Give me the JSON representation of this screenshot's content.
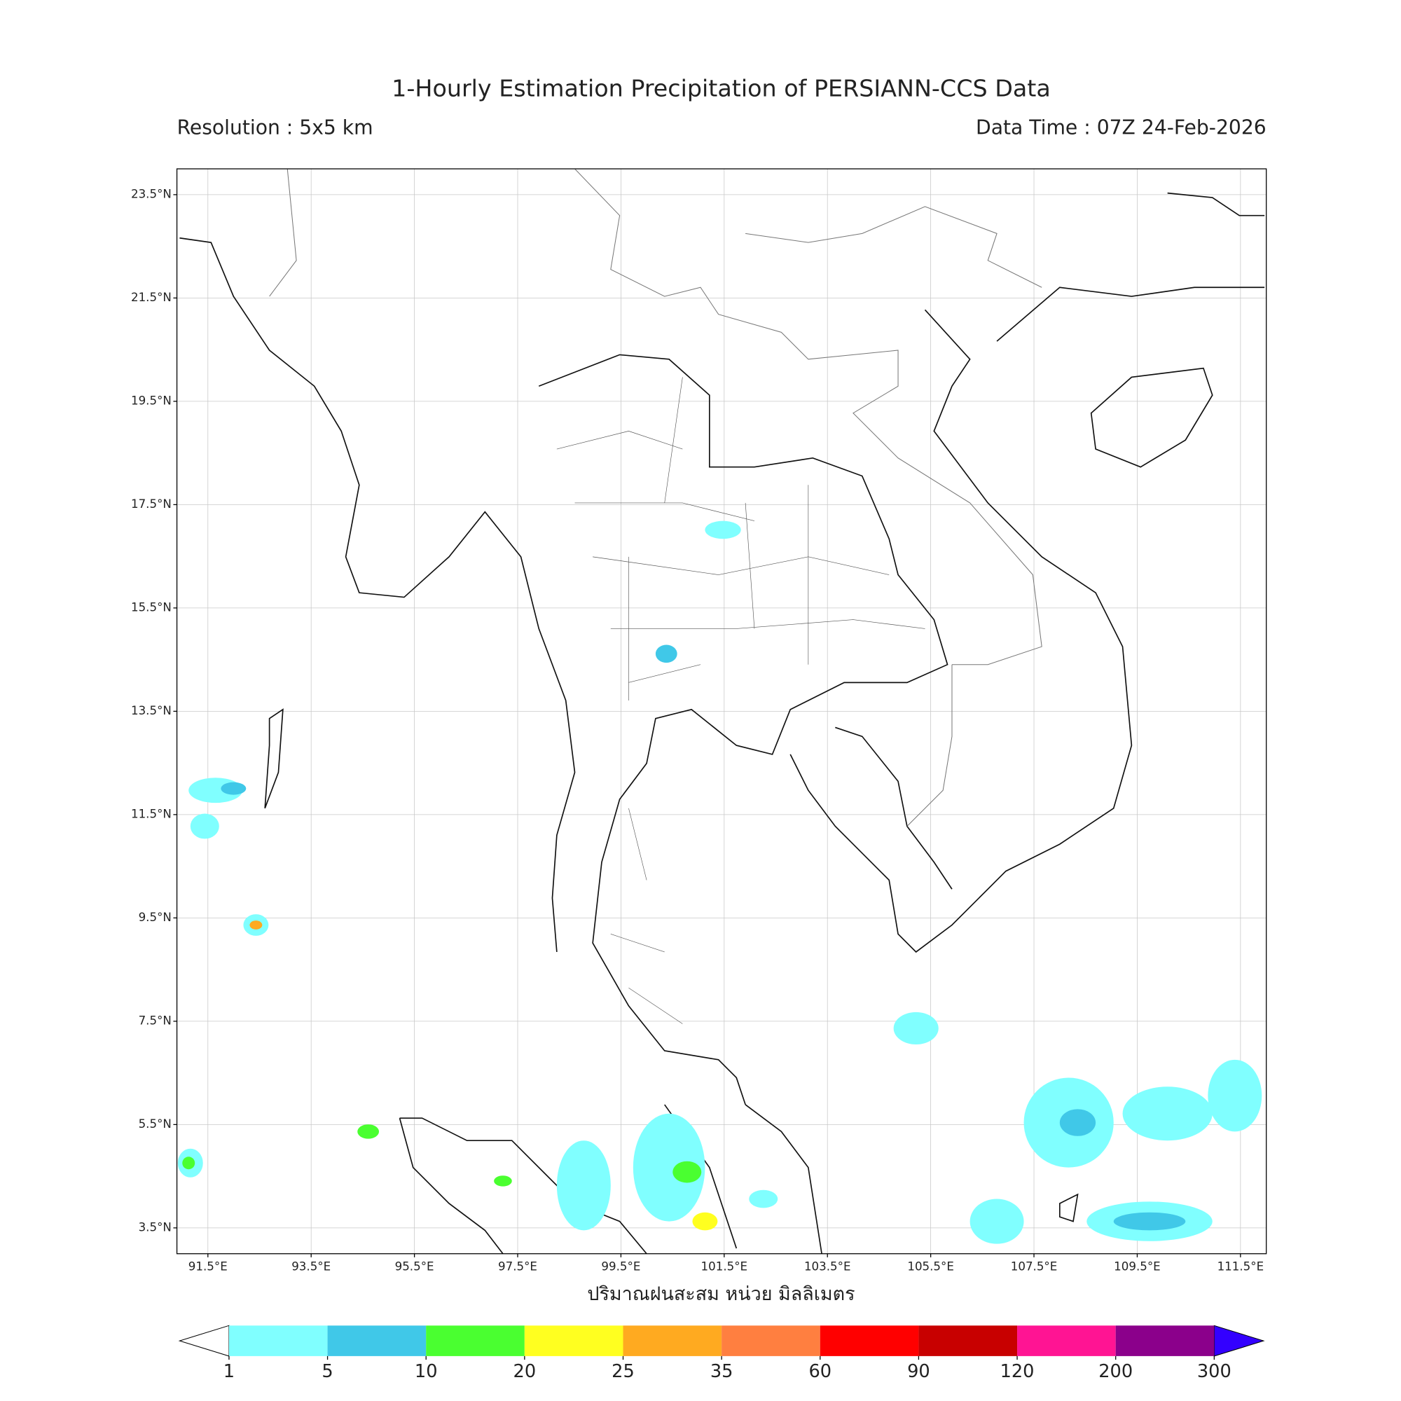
{
  "map": {
    "title": "1-Hourly Estimation Precipitation of PERSIANN-CCS Data",
    "subtitle_left": "Resolution : 5x5 km",
    "subtitle_right": "Data Time : 07Z 24-Feb-2026",
    "xlabel": "ปริมาณฝนสะสม หน่วย มิลลิเมตร",
    "xlim": [
      90.9,
      112.0
    ],
    "ylim": [
      3.0,
      24.0
    ],
    "grid": true,
    "xticks": [
      {
        "value": 91.5,
        "label": "91.5°E"
      },
      {
        "value": 93.5,
        "label": "93.5°E"
      },
      {
        "value": 95.5,
        "label": "95.5°E"
      },
      {
        "value": 97.5,
        "label": "97.5°E"
      },
      {
        "value": 99.5,
        "label": "99.5°E"
      },
      {
        "value": 101.5,
        "label": "101.5°E"
      },
      {
        "value": 103.5,
        "label": "103.5°E"
      },
      {
        "value": 105.5,
        "label": "105.5°E"
      },
      {
        "value": 107.5,
        "label": "107.5°E"
      },
      {
        "value": 109.5,
        "label": "109.5°E"
      },
      {
        "value": 111.5,
        "label": "111.5°E"
      }
    ],
    "yticks": [
      {
        "value": 3.5,
        "label": "3.5°N"
      },
      {
        "value": 5.5,
        "label": "5.5°N"
      },
      {
        "value": 7.5,
        "label": "7.5°N"
      },
      {
        "value": 9.5,
        "label": "9.5°N"
      },
      {
        "value": 11.5,
        "label": "11.5°N"
      },
      {
        "value": 13.5,
        "label": "13.5°N"
      },
      {
        "value": 15.5,
        "label": "15.5°N"
      },
      {
        "value": 17.5,
        "label": "17.5°N"
      },
      {
        "value": 19.5,
        "label": "19.5°N"
      },
      {
        "value": 21.5,
        "label": "21.5°N"
      },
      {
        "value": 23.5,
        "label": "23.5°N"
      }
    ],
    "colorbar": {
      "levels": [
        1,
        5,
        10,
        20,
        25,
        35,
        60,
        90,
        120,
        200,
        300
      ],
      "colors": [
        "#80ffff",
        "#40c8e8",
        "#4aff30",
        "#ffff20",
        "#ffaa20",
        "#ff7f40",
        "#ff0000",
        "#c80000",
        "#ff1493",
        "#8b008b"
      ],
      "under_color": "#ffffff",
      "over_color": "#3300ff"
    }
  }
}
